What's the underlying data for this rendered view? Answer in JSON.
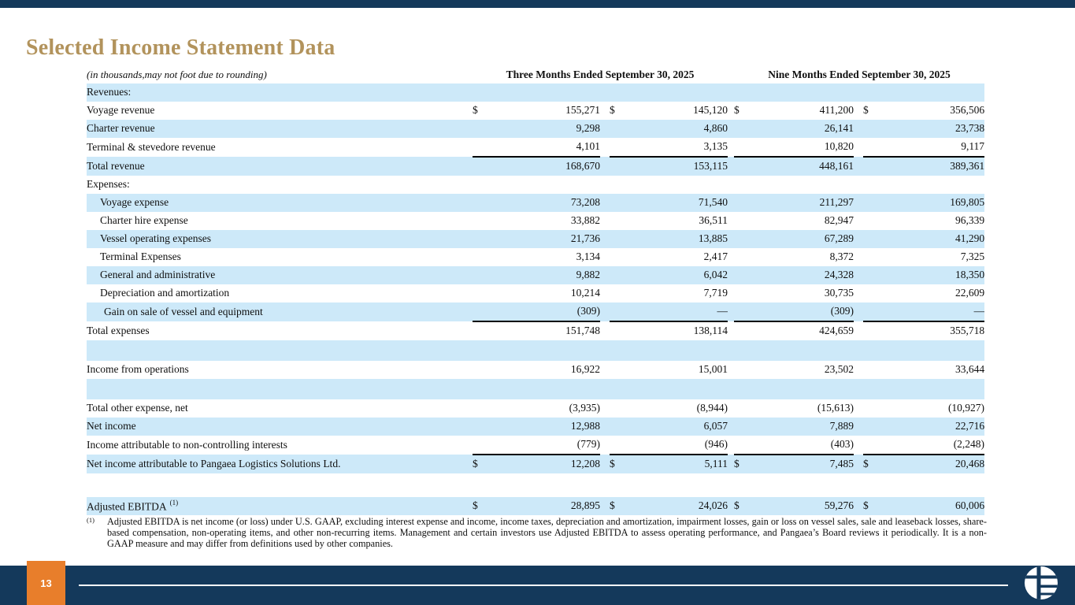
{
  "slide": {
    "title": "Selected Income Statement Data",
    "page_number": "13"
  },
  "table": {
    "note": "(in thousands,may not foot due to rounding)",
    "period_headers": [
      "Three Months Ended September 30, 2025",
      "Nine Months Ended September 30, 2025"
    ],
    "rows": [
      {
        "label": "Revenues:",
        "shade": true,
        "values": [
          "",
          "",
          "",
          ""
        ]
      },
      {
        "label": "Voyage revenue",
        "dollar": true,
        "values": [
          "155,271",
          "145,120",
          "411,200",
          "356,506"
        ]
      },
      {
        "label": "Charter revenue",
        "shade": true,
        "values": [
          "9,298",
          "4,860",
          "26,141",
          "23,738"
        ]
      },
      {
        "label": "Terminal & stevedore revenue",
        "underline": true,
        "values": [
          "4,101",
          "3,135",
          "10,820",
          "9,117"
        ]
      },
      {
        "label": "Total revenue",
        "shade": true,
        "values": [
          "168,670",
          "153,115",
          "448,161",
          "389,361"
        ]
      },
      {
        "label": "Expenses:",
        "values": [
          "",
          "",
          "",
          ""
        ]
      },
      {
        "label": "Voyage expense",
        "indent": 1,
        "shade": true,
        "values": [
          "73,208",
          "71,540",
          "211,297",
          "169,805"
        ]
      },
      {
        "label": "Charter hire expense",
        "indent": 1,
        "values": [
          "33,882",
          "36,511",
          "82,947",
          "96,339"
        ]
      },
      {
        "label": "Vessel operating expenses",
        "indent": 1,
        "shade": true,
        "values": [
          "21,736",
          "13,885",
          "67,289",
          "41,290"
        ]
      },
      {
        "label": "Terminal Expenses",
        "indent": 1,
        "values": [
          "3,134",
          "2,417",
          "8,372",
          "7,325"
        ]
      },
      {
        "label": "General and administrative",
        "indent": 1,
        "shade": true,
        "values": [
          "9,882",
          "6,042",
          "24,328",
          "18,350"
        ]
      },
      {
        "label": "Depreciation and amortization",
        "indent": 1,
        "values": [
          "10,214",
          "7,719",
          "30,735",
          "22,609"
        ]
      },
      {
        "label": "Gain on sale of vessel and equipment",
        "indent": 2,
        "shade": true,
        "underline": true,
        "values": [
          "(309)",
          "—",
          "(309)",
          "—"
        ]
      },
      {
        "label": "Total expenses",
        "values": [
          "151,748",
          "138,114",
          "424,659",
          "355,718"
        ]
      },
      {
        "blank": true,
        "shade": true
      },
      {
        "label": "Income from operations",
        "values": [
          "16,922",
          "15,001",
          "23,502",
          "33,644"
        ]
      },
      {
        "blank": true,
        "shade": true
      },
      {
        "label": "Total other expense, net",
        "values": [
          "(3,935)",
          "(8,944)",
          "(15,613)",
          "(10,927)"
        ]
      },
      {
        "label": "Net income",
        "shade": true,
        "values": [
          "12,988",
          "6,057",
          "7,889",
          "22,716"
        ]
      },
      {
        "label": "Income attributable to non-controlling interests",
        "underline": true,
        "values": [
          "(779)",
          "(946)",
          "(403)",
          "(2,248)"
        ]
      },
      {
        "label": "Net income attributable to Pangaea Logistics Solutions Ltd.",
        "shade": true,
        "dollar": true,
        "values": [
          "12,208",
          "5,111",
          "7,485",
          "20,468"
        ]
      },
      {
        "blank": true,
        "tall": true
      },
      {
        "label": "Adjusted EBITDA",
        "sup": "(1)",
        "shade": true,
        "dollar": true,
        "values": [
          "28,895",
          "24,026",
          "59,276",
          "60,006"
        ]
      }
    ]
  },
  "footnote": {
    "marker": "(1)",
    "text": "Adjusted EBITDA is net income (or loss) under U.S. GAAP, excluding interest expense and income, income taxes, depreciation and amortization, impairment losses, gain or loss on vessel sales, sale and leaseback losses, share-based compensation, non-operating items, and other non-recurring items. Management and certain investors use Adjusted EBITDA to assess operating performance, and Pangaea’s Board reviews it periodically. It is a non-GAAP measure and may differ from definitions used by other companies."
  },
  "colors": {
    "navy": "#14395B",
    "orange": "#E87E2B",
    "row_blue": "#CDE9F9",
    "title_gold": "#B2935C"
  },
  "icons": {
    "logo": "pangaea-globe-logo"
  }
}
